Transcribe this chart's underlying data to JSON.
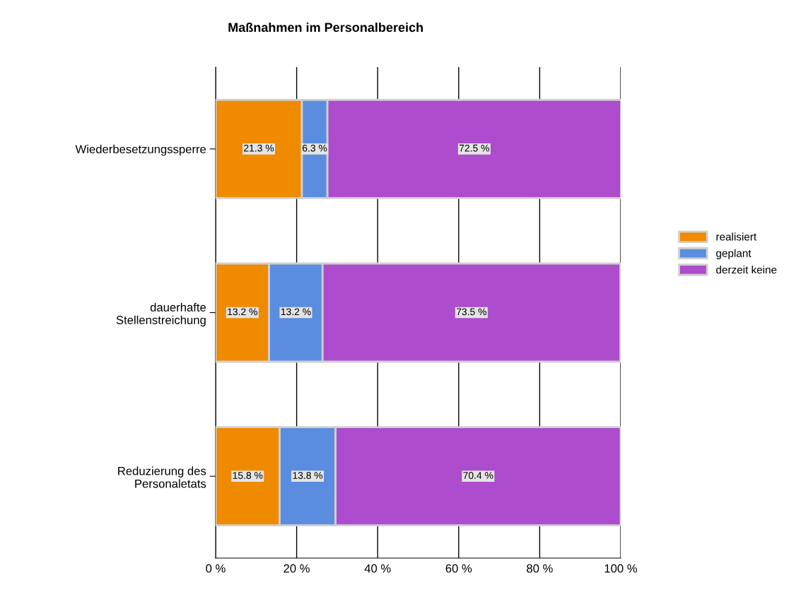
{
  "chart_data": {
    "type": "bar",
    "orientation": "horizontal",
    "stacked": true,
    "title": "Maßnahmen im Personalbereich",
    "categories": [
      "Wiederbesetzungssperre",
      "dauerhafte\nStellenstreichung",
      "Reduzierung des\nPersonaletats"
    ],
    "series": [
      {
        "name": "realisiert",
        "color": "#f08a00",
        "values": [
          21.3,
          13.2,
          15.8
        ],
        "value_labels": [
          "21.3 %",
          "13.2 %",
          "15.8 %"
        ]
      },
      {
        "name": "geplant",
        "color": "#5a8ddf",
        "values": [
          6.3,
          13.2,
          13.8
        ],
        "value_labels": [
          "6.3 %",
          "13.2 %",
          "13.8 %"
        ]
      },
      {
        "name": "derzeit keine",
        "color": "#ad4ccc",
        "values": [
          72.5,
          73.5,
          70.4
        ],
        "value_labels": [
          "72.5 %",
          "73.5 %",
          "70.4 %"
        ]
      }
    ],
    "xlim": [
      0,
      100
    ],
    "xticks": [
      {
        "value": 0,
        "label": "0 %"
      },
      {
        "value": 20,
        "label": "20 %"
      },
      {
        "value": 40,
        "label": "40 %"
      },
      {
        "value": 60,
        "label": "60 %"
      },
      {
        "value": 80,
        "label": "80 %"
      },
      {
        "value": 100,
        "label": "100 %"
      }
    ],
    "grid": "x",
    "legend": "right"
  }
}
